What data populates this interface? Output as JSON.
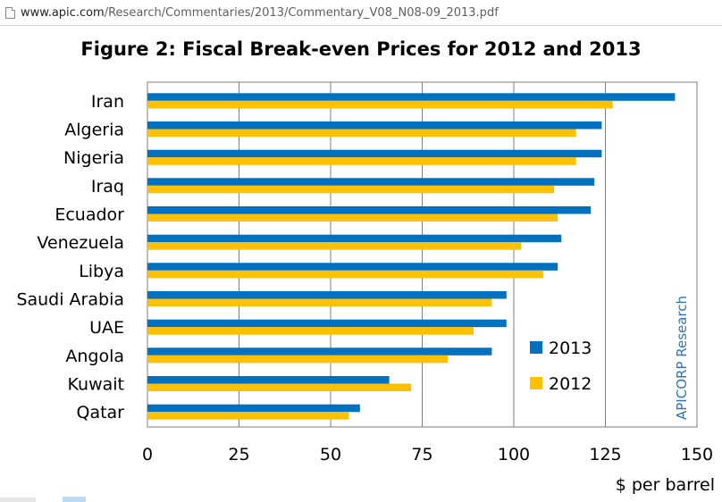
{
  "browser": {
    "url_host": "www.apic.com",
    "url_path": "/Research/Commentaries/2013/Commentary_V08_N08-09_2013.pdf"
  },
  "colors": {
    "series_2013": "#0070c0",
    "series_2012": "#ffc000",
    "gridline": "#7f7f7f",
    "watermark": "#2e75b6"
  },
  "chart_data": {
    "type": "bar",
    "orientation": "horizontal",
    "title": "Figure 2: Fiscal Break-even Prices for 2012 and 2013",
    "xlabel": "$ per barrel",
    "ylabel": "",
    "xlim": [
      0,
      150
    ],
    "xticks": [
      0,
      25,
      50,
      75,
      100,
      125,
      150
    ],
    "grid": true,
    "legend_position": "bottom-right",
    "categories": [
      "Iran",
      "Algeria",
      "Nigeria",
      "Iraq",
      "Ecuador",
      "Venezuela",
      "Libya",
      "Saudi Arabia",
      "UAE",
      "Angola",
      "Kuwait",
      "Qatar"
    ],
    "series": [
      {
        "name": "2013",
        "values": [
          144,
          124,
          124,
          122,
          121,
          113,
          112,
          98,
          98,
          94,
          66,
          58
        ]
      },
      {
        "name": "2012",
        "values": [
          127,
          117,
          117,
          111,
          112,
          102,
          108,
          94,
          89,
          82,
          72,
          55
        ]
      }
    ],
    "annotation": "APICORP Research"
  }
}
